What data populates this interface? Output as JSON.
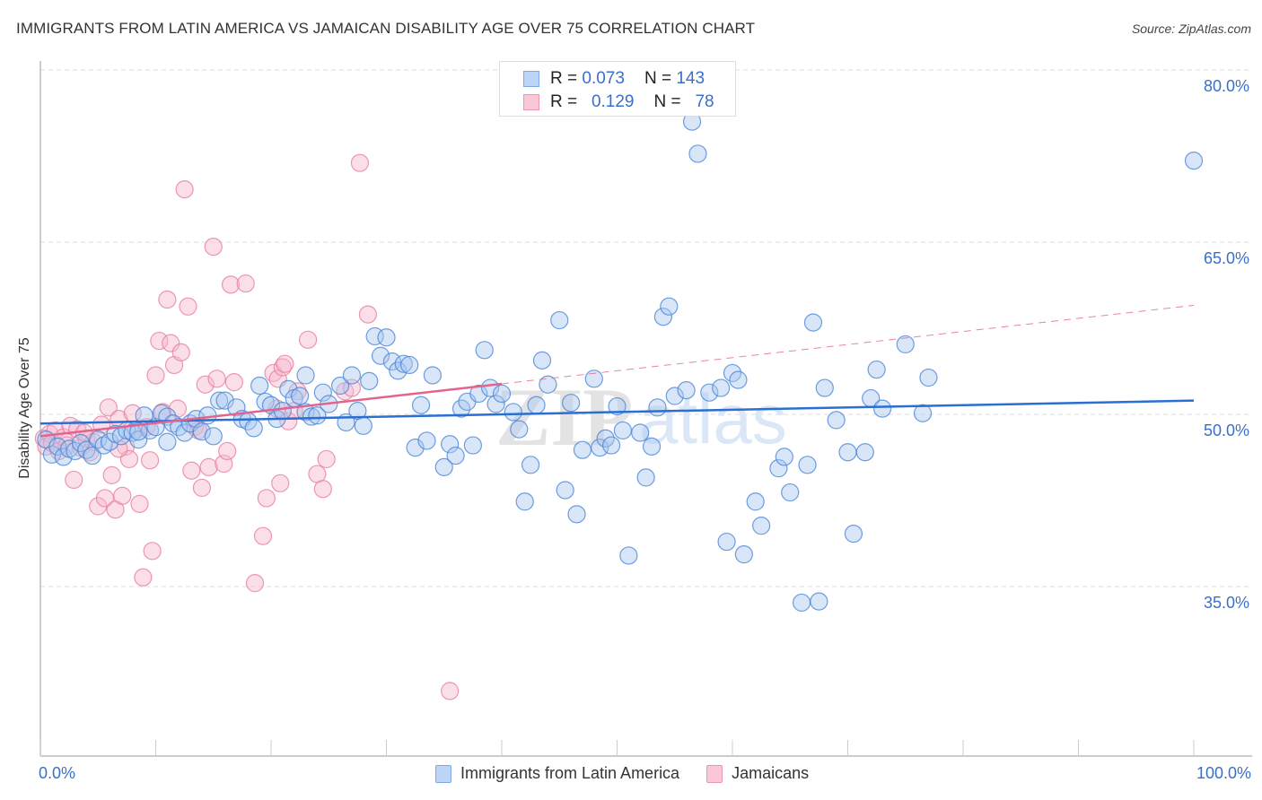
{
  "header": {
    "title": "IMMIGRANTS FROM LATIN AMERICA VS JAMAICAN DISABILITY AGE OVER 75 CORRELATION CHART",
    "source": "Source: ZipAtlas.com"
  },
  "legend_top": {
    "rows": [
      {
        "r_label": "R =",
        "r_value": "0.073",
        "n_label": "N =",
        "n_value": "143"
      },
      {
        "r_label": "R =",
        "r_value": "0.129",
        "n_label": "N =",
        "n_value": "78"
      }
    ]
  },
  "watermark": {
    "zip": "ZIP",
    "atlas": "atlas"
  },
  "chart_data": {
    "type": "scatter",
    "title": "IMMIGRANTS FROM LATIN AMERICA VS JAMAICAN DISABILITY AGE OVER 75 CORRELATION CHART",
    "xlabel": "",
    "ylabel": "Disability Age Over 75",
    "xlim": [
      0,
      100
    ],
    "ylim": [
      20,
      82
    ],
    "x_tick_labels": [
      "0.0%",
      "100.0%"
    ],
    "y_ticks": [
      35,
      50,
      65,
      80
    ],
    "y_tick_labels": [
      "35.0%",
      "50.0%",
      "65.0%",
      "80.0%"
    ],
    "grid": true,
    "legend_position": "bottom",
    "colors": {
      "blue_fill": "#a9c8f0",
      "blue_stroke": "#4a86d8",
      "blue_line": "#2a6fd1",
      "pink_fill": "#f7b8cc",
      "pink_stroke": "#e87ea0",
      "pink_line": "#e2648e"
    },
    "series": [
      {
        "name": "Immigrants from Latin America",
        "r": 0.073,
        "n": 143,
        "trend": {
          "x0": 0,
          "y0": 49.2,
          "x1": 100,
          "y1": 51.2,
          "dashed_from": null
        },
        "points": [
          [
            0.5,
            47.8
          ],
          [
            1,
            46.5
          ],
          [
            1.5,
            47.2
          ],
          [
            2,
            46.3
          ],
          [
            2.5,
            47
          ],
          [
            3,
            46.8
          ],
          [
            3.5,
            47.5
          ],
          [
            4,
            46.9
          ],
          [
            4.5,
            46.4
          ],
          [
            5,
            47.8
          ],
          [
            5.5,
            47.3
          ],
          [
            6,
            47.6
          ],
          [
            6.5,
            48.3
          ],
          [
            7,
            48.1
          ],
          [
            7.5,
            48.6
          ],
          [
            8,
            48.4
          ],
          [
            8.5,
            47.8
          ],
          [
            9,
            49.9
          ],
          [
            9.5,
            48.6
          ],
          [
            10,
            48.9
          ],
          [
            10.5,
            50.1
          ],
          [
            11,
            49.8
          ],
          [
            11.5,
            49.2
          ],
          [
            12,
            48.9
          ],
          [
            12.5,
            48.4
          ],
          [
            13,
            49.2
          ],
          [
            13.5,
            49.6
          ],
          [
            14,
            48.5
          ],
          [
            14.5,
            49.9
          ],
          [
            15,
            48.1
          ],
          [
            15.5,
            51.2
          ],
          [
            16,
            51.2
          ],
          [
            17,
            50.6
          ],
          [
            17.5,
            49.6
          ],
          [
            18,
            49.4
          ],
          [
            18.5,
            48.8
          ],
          [
            19,
            52.5
          ],
          [
            19.5,
            51.1
          ],
          [
            20,
            50.8
          ],
          [
            20.5,
            49.6
          ],
          [
            21,
            50.3
          ],
          [
            21.5,
            52.2
          ],
          [
            22,
            51.4
          ],
          [
            22.5,
            51.6
          ],
          [
            23,
            50.2
          ],
          [
            23.5,
            49.8
          ],
          [
            24,
            49.9
          ],
          [
            24.5,
            51.9
          ],
          [
            25,
            50.9
          ],
          [
            26,
            52.5
          ],
          [
            26.5,
            49.3
          ],
          [
            27,
            53.4
          ],
          [
            27.5,
            50.3
          ],
          [
            28,
            49
          ],
          [
            28.5,
            52.9
          ],
          [
            29,
            56.8
          ],
          [
            29.5,
            55.1
          ],
          [
            30,
            56.7
          ],
          [
            30.5,
            54.6
          ],
          [
            31,
            53.8
          ],
          [
            31.5,
            54.4
          ],
          [
            32,
            54.3
          ],
          [
            32.5,
            47.1
          ],
          [
            33,
            50.8
          ],
          [
            33.5,
            47.7
          ],
          [
            34,
            53.4
          ],
          [
            35,
            45.4
          ],
          [
            35.5,
            47.4
          ],
          [
            36,
            46.4
          ],
          [
            36.5,
            50.5
          ],
          [
            37,
            51.1
          ],
          [
            37.5,
            47.3
          ],
          [
            38,
            51.8
          ],
          [
            38.5,
            55.6
          ],
          [
            39,
            52.3
          ],
          [
            39.5,
            50.9
          ],
          [
            40,
            51.8
          ],
          [
            41,
            50.2
          ],
          [
            41.5,
            48.7
          ],
          [
            42,
            42.4
          ],
          [
            42.5,
            45.6
          ],
          [
            43,
            50.8
          ],
          [
            43.5,
            54.7
          ],
          [
            44,
            52.6
          ],
          [
            45,
            58.2
          ],
          [
            45.5,
            43.4
          ],
          [
            46,
            51
          ],
          [
            46.5,
            41.3
          ],
          [
            47,
            46.9
          ],
          [
            48,
            53.1
          ],
          [
            48.5,
            47.1
          ],
          [
            49,
            47.9
          ],
          [
            49.5,
            47.3
          ],
          [
            50,
            50.7
          ],
          [
            50.5,
            48.6
          ],
          [
            51,
            37.7
          ],
          [
            52,
            48.4
          ],
          [
            52.5,
            44.5
          ],
          [
            53,
            47.2
          ],
          [
            53.5,
            50.6
          ],
          [
            54,
            58.5
          ],
          [
            54.5,
            59.4
          ],
          [
            55,
            51.6
          ],
          [
            56,
            52.1
          ],
          [
            56.5,
            75.5
          ],
          [
            57,
            72.7
          ],
          [
            58,
            51.9
          ],
          [
            59.5,
            38.9
          ],
          [
            60,
            53.6
          ],
          [
            60.5,
            53
          ],
          [
            61,
            37.8
          ],
          [
            62,
            42.4
          ],
          [
            62.5,
            40.3
          ],
          [
            64,
            45.3
          ],
          [
            64.5,
            46.3
          ],
          [
            65,
            43.2
          ],
          [
            66,
            33.6
          ],
          [
            66.5,
            45.6
          ],
          [
            67,
            58
          ],
          [
            67.5,
            33.7
          ],
          [
            68,
            52.3
          ],
          [
            69,
            49.5
          ],
          [
            70,
            46.7
          ],
          [
            70.5,
            39.6
          ],
          [
            71.5,
            46.7
          ],
          [
            72,
            51.4
          ],
          [
            72.5,
            53.9
          ],
          [
            73,
            50.5
          ],
          [
            75,
            56.1
          ],
          [
            76.5,
            50.1
          ],
          [
            77,
            53.2
          ],
          [
            58.5,
            78
          ],
          [
            100,
            72.1
          ],
          [
            59,
            52.3
          ],
          [
            23,
            53.4
          ],
          [
            11,
            47.6
          ],
          [
            8.5,
            48.5
          ]
        ]
      },
      {
        "name": "Jamaicans",
        "r": 0.129,
        "n": 78,
        "trend": {
          "x0": 0,
          "y0": 48.1,
          "x1": 100,
          "y1": 59.5,
          "dashed_from": 40
        },
        "points": [
          [
            0.3,
            47.9
          ],
          [
            0.5,
            47.2
          ],
          [
            0.8,
            48.3
          ],
          [
            1,
            47.5
          ],
          [
            1.3,
            48.6
          ],
          [
            1.6,
            46.8
          ],
          [
            2,
            48
          ],
          [
            2.3,
            47.3
          ],
          [
            2.6,
            49
          ],
          [
            2.9,
            44.3
          ],
          [
            3.2,
            48.7
          ],
          [
            3.5,
            47.1
          ],
          [
            4,
            47.9
          ],
          [
            4.3,
            46.7
          ],
          [
            4.6,
            47.6
          ],
          [
            5,
            42
          ],
          [
            5.3,
            49.1
          ],
          [
            5.6,
            42.7
          ],
          [
            5.9,
            50.6
          ],
          [
            6.2,
            44.7
          ],
          [
            6.5,
            41.7
          ],
          [
            6.8,
            49.6
          ],
          [
            7.1,
            42.9
          ],
          [
            7.4,
            47.2
          ],
          [
            7.7,
            46.1
          ],
          [
            8,
            50.1
          ],
          [
            8.3,
            48.7
          ],
          [
            8.6,
            42.2
          ],
          [
            8.9,
            35.8
          ],
          [
            9.2,
            48.9
          ],
          [
            9.5,
            46
          ],
          [
            9.7,
            38.1
          ],
          [
            10,
            53.4
          ],
          [
            10.3,
            56.4
          ],
          [
            10.6,
            50.2
          ],
          [
            11,
            60
          ],
          [
            11.3,
            56.2
          ],
          [
            11.6,
            54.3
          ],
          [
            11.9,
            50.5
          ],
          [
            12.2,
            55.4
          ],
          [
            12.5,
            69.6
          ],
          [
            12.8,
            59.4
          ],
          [
            13.1,
            45.1
          ],
          [
            13.4,
            48.9
          ],
          [
            13.7,
            48.6
          ],
          [
            14,
            43.6
          ],
          [
            14.3,
            52.6
          ],
          [
            14.6,
            45.4
          ],
          [
            15,
            64.6
          ],
          [
            15.3,
            53.1
          ],
          [
            15.9,
            45.7
          ],
          [
            16.2,
            46.8
          ],
          [
            16.5,
            61.3
          ],
          [
            16.8,
            52.8
          ],
          [
            17.8,
            61.4
          ],
          [
            18.6,
            35.3
          ],
          [
            19.3,
            39.4
          ],
          [
            19.6,
            42.7
          ],
          [
            20.5,
            50.5
          ],
          [
            20.2,
            53.6
          ],
          [
            20.6,
            53.1
          ],
          [
            20.8,
            44
          ],
          [
            21,
            54.1
          ],
          [
            21.2,
            54.4
          ],
          [
            21.5,
            49.4
          ],
          [
            22,
            50.3
          ],
          [
            22.3,
            52
          ],
          [
            23.2,
            56.5
          ],
          [
            24,
            44.8
          ],
          [
            24.5,
            43.5
          ],
          [
            24.8,
            46.1
          ],
          [
            26.4,
            52
          ],
          [
            27,
            52.3
          ],
          [
            27.7,
            71.9
          ],
          [
            28.4,
            58.7
          ],
          [
            35.5,
            25.9
          ],
          [
            6.8,
            47
          ],
          [
            3.8,
            48.4
          ]
        ]
      }
    ]
  },
  "bottom_legend": {
    "items": [
      {
        "label": "Immigrants from Latin America"
      },
      {
        "label": "Jamaicans"
      }
    ]
  }
}
